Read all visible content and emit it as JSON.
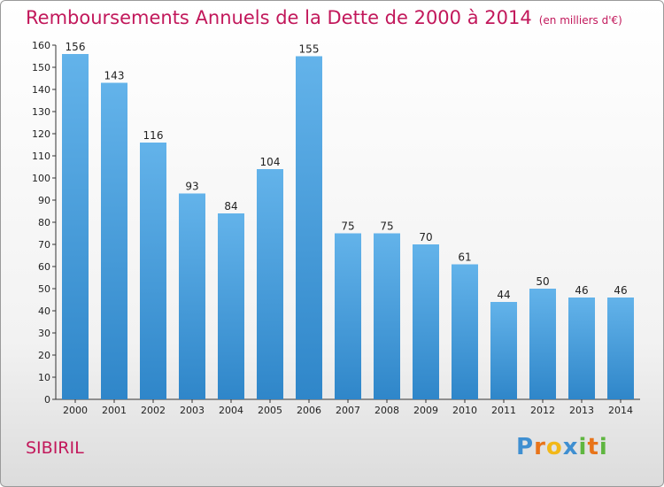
{
  "chart_data": {
    "type": "bar",
    "title": "Remboursements Annuels de la Dette de 2000 à 2014",
    "unit_label": "(en milliers d'€)",
    "categories": [
      "2000",
      "2001",
      "2002",
      "2003",
      "2004",
      "2005",
      "2006",
      "2007",
      "2008",
      "2009",
      "2010",
      "2011",
      "2012",
      "2013",
      "2014"
    ],
    "values": [
      156,
      143,
      116,
      93,
      84,
      104,
      155,
      75,
      75,
      70,
      61,
      44,
      50,
      46,
      46
    ],
    "ylim": [
      0,
      160
    ],
    "yticks": [
      0,
      10,
      20,
      30,
      40,
      50,
      60,
      70,
      80,
      90,
      100,
      110,
      120,
      130,
      140,
      150,
      160
    ],
    "grid": false,
    "xlabel": "",
    "ylabel": "",
    "bar_color_top": "#63b3ea",
    "bar_color_bottom": "#2f86c9"
  },
  "commune": "SIBIRIL",
  "logo": {
    "letters": [
      "P",
      "r",
      "o",
      "x",
      "i",
      "t",
      "i"
    ],
    "colors": [
      "#3f8fd1",
      "#e8741a",
      "#f2b818",
      "#3f8fd1",
      "#5fb640",
      "#e8741a",
      "#5fb640"
    ]
  },
  "colors": {
    "title": "#c2185b",
    "axis": "#333333"
  }
}
